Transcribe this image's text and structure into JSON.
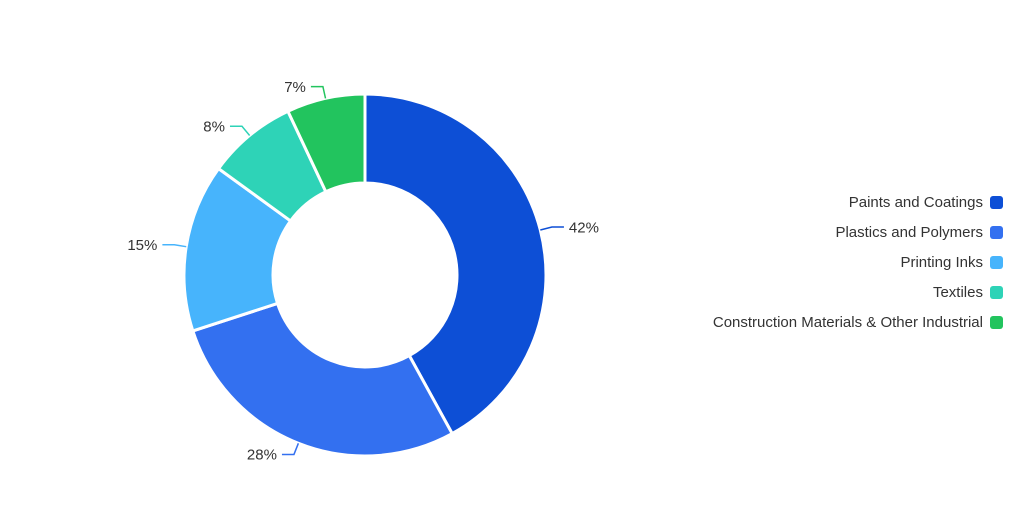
{
  "chart_data": {
    "type": "pie",
    "subtype": "donut",
    "title": "",
    "categories": [
      "Paints and Coatings",
      "Plastics and Polymers",
      "Printing Inks",
      "Textiles",
      "Construction Materials & Other Industrial"
    ],
    "values": [
      42,
      28,
      15,
      8,
      7
    ],
    "labels": [
      "42%",
      "28%",
      "15%",
      "8%",
      "7%"
    ],
    "unit": "%",
    "colors": [
      "#0d4fd6",
      "#3370f0",
      "#47b4fc",
      "#2ed3b7",
      "#22c45e"
    ],
    "label_text_color": "#333333",
    "segment_border_color": "#ffffff",
    "background_color": "#ffffff",
    "legend_position": "right",
    "start_angle_deg": 0,
    "direction": "clockwise",
    "legend_entries": [
      "Paints and Coatings",
      "Plastics and Polymers",
      "Printing Inks",
      "Textiles",
      "Construction Materials & Other Industrial"
    ]
  }
}
